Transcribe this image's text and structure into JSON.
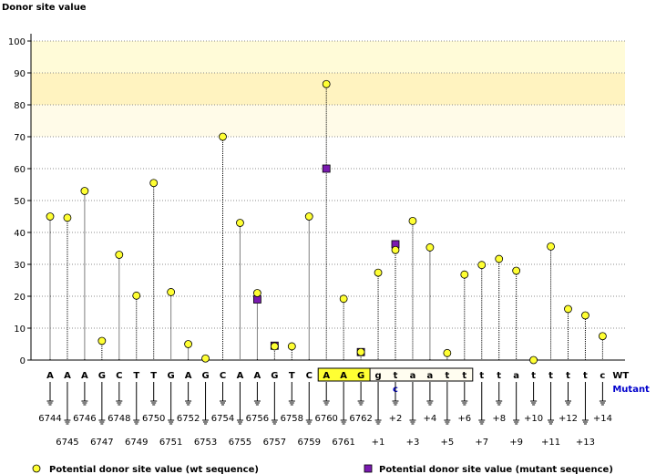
{
  "chart_data": {
    "type": "lollipop",
    "title": "Donor site value",
    "ylim": [
      0,
      100
    ],
    "yticks": [
      0,
      10,
      20,
      30,
      40,
      50,
      60,
      70,
      80,
      90,
      100
    ],
    "highlight_bands": [
      {
        "from": 90,
        "to": 100,
        "color": "#fffbd8"
      },
      {
        "from": 80,
        "to": 90,
        "color": "#fff3c0"
      },
      {
        "from": 70,
        "to": 80,
        "color": "#fffbe8"
      }
    ],
    "row_labels": {
      "wt": "WT",
      "mutant": "Mutant"
    },
    "positions": [
      {
        "base": "A",
        "pos": "6744",
        "wt": 45
      },
      {
        "base": "A",
        "pos": "6745",
        "wt": 44.6
      },
      {
        "base": "A",
        "pos": "6746",
        "wt": 53
      },
      {
        "base": "G",
        "pos": "6747",
        "wt": 6
      },
      {
        "base": "C",
        "pos": "6748",
        "wt": 33
      },
      {
        "base": "T",
        "pos": "6749",
        "wt": 20.2
      },
      {
        "base": "T",
        "pos": "6750",
        "wt": 55.5
      },
      {
        "base": "G",
        "pos": "6751",
        "wt": 21.3
      },
      {
        "base": "A",
        "pos": "6752",
        "wt": 5
      },
      {
        "base": "G",
        "pos": "6753",
        "wt": 0.5
      },
      {
        "base": "C",
        "pos": "6754",
        "wt": 70
      },
      {
        "base": "A",
        "pos": "6755",
        "wt": 43
      },
      {
        "base": "A",
        "pos": "6756",
        "wt": 21,
        "mutant": 19
      },
      {
        "base": "G",
        "pos": "6757",
        "wt": 4.3,
        "mutant": 4.5
      },
      {
        "base": "T",
        "pos": "6758",
        "wt": 4.3
      },
      {
        "base": "C",
        "pos": "6759",
        "wt": 45
      },
      {
        "base": "A",
        "pos": "6760",
        "wt": 86.5,
        "mutant": 60,
        "box": true
      },
      {
        "base": "A",
        "pos": "6761",
        "wt": 19.2,
        "box": true
      },
      {
        "base": "G",
        "pos": "6762",
        "wt": 2.5,
        "mutant": 2.5,
        "box": true
      },
      {
        "base": "g",
        "pos": "+1",
        "wt": 27.4,
        "box": true
      },
      {
        "base": "t",
        "pos": "+2",
        "wt": 34.5,
        "mutant": 36.3,
        "mutbase": "c",
        "box": true
      },
      {
        "base": "a",
        "pos": "+3",
        "wt": 43.6,
        "box": true
      },
      {
        "base": "a",
        "pos": "+4",
        "wt": 35.3,
        "box": true
      },
      {
        "base": "t",
        "pos": "+5",
        "wt": 2.2,
        "box": true
      },
      {
        "base": "t",
        "pos": "+6",
        "wt": 26.8,
        "box": true
      },
      {
        "base": "t",
        "pos": "+7",
        "wt": 29.8
      },
      {
        "base": "t",
        "pos": "+8",
        "wt": 31.7
      },
      {
        "base": "a",
        "pos": "+9",
        "wt": 28
      },
      {
        "base": "t",
        "pos": "+10",
        "wt": 0
      },
      {
        "base": "t",
        "pos": "+11",
        "wt": 35.6
      },
      {
        "base": "t",
        "pos": "+12",
        "wt": 16
      },
      {
        "base": "t",
        "pos": "+13",
        "wt": 14
      },
      {
        "base": "c",
        "pos": "+14",
        "wt": 7.5
      }
    ],
    "legend": [
      {
        "label": "Potential donor site value (wt sequence)",
        "color": "#ffff33",
        "shape": "circle"
      },
      {
        "label": "Potential donor site value (mutant sequence)",
        "color": "#7a1ab0",
        "shape": "square"
      }
    ]
  }
}
